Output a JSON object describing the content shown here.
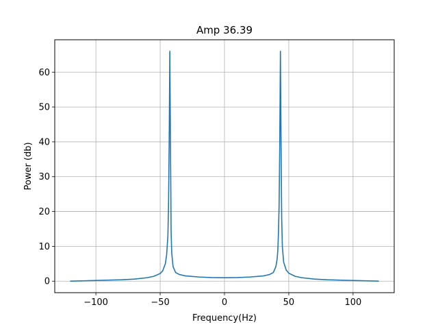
{
  "chart_data": {
    "type": "line",
    "title": "Amp 36.39",
    "xlabel": "Frequency(Hz)",
    "ylabel": "Power (db)",
    "xlim": [
      -132,
      132
    ],
    "ylim": [
      -3.3,
      69.3
    ],
    "grid": true,
    "xticks": [
      -100,
      -50,
      0,
      50,
      100
    ],
    "xtick_labels": [
      "−100",
      "−50",
      "0",
      "50",
      "100"
    ],
    "yticks": [
      0,
      10,
      20,
      30,
      40,
      50,
      60
    ],
    "ytick_labels": [
      "0",
      "10",
      "20",
      "30",
      "40",
      "50",
      "60"
    ],
    "series": [
      {
        "color": "#1f77b4",
        "x": [
          -120,
          -100,
          -80,
          -70,
          -60,
          -55,
          -50,
          -48,
          -46,
          -45,
          -44,
          -43.5,
          -43,
          -42.5,
          -42,
          -41.5,
          -41,
          -40,
          -38,
          -35,
          -30,
          -20,
          -10,
          0,
          10,
          20,
          30,
          35,
          38,
          40,
          41,
          41.5,
          42,
          42.5,
          43,
          43.5,
          44,
          44.5,
          45,
          46,
          48,
          50,
          55,
          60,
          70,
          80,
          100,
          120
        ],
        "y": [
          0,
          0.2,
          0.4,
          0.6,
          1.0,
          1.4,
          2.2,
          3.0,
          5.0,
          7.5,
          13,
          22,
          40,
          66,
          40,
          14,
          8,
          4.2,
          2.5,
          1.9,
          1.5,
          1.2,
          1.05,
          1.0,
          1.05,
          1.2,
          1.5,
          1.9,
          2.5,
          4.2,
          6.5,
          9,
          14,
          22,
          40,
          66,
          40,
          18,
          10,
          5.5,
          3.2,
          2.3,
          1.4,
          1.0,
          0.6,
          0.4,
          0.2,
          0
        ]
      }
    ]
  }
}
